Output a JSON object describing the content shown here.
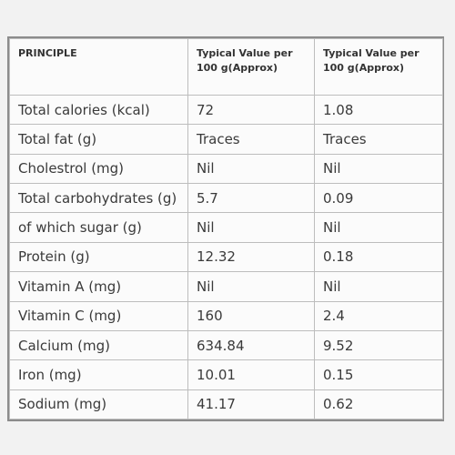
{
  "table": {
    "headers": [
      "PRINCIPLE",
      "Typical Value per 100 g(Approx)",
      "Typical Value per 100 g(Approx)"
    ],
    "rows": [
      [
        "Total calories (kcal)",
        "72",
        "1.08"
      ],
      [
        "Total fat (g)",
        "Traces",
        "Traces"
      ],
      [
        "Cholestrol (mg)",
        "Nil",
        "Nil"
      ],
      [
        "Total carbohydrates (g)",
        "5.7",
        "0.09"
      ],
      [
        "of which sugar (g)",
        "Nil",
        "Nil"
      ],
      [
        "Protein (g)",
        "12.32",
        "0.18"
      ],
      [
        "Vitamin A (mg)",
        "Nil",
        "Nil"
      ],
      [
        "Vitamin C (mg)",
        "160",
        "2.4"
      ],
      [
        "Calcium (mg)",
        "634.84",
        "9.52"
      ],
      [
        "Iron (mg)",
        "10.01",
        "0.15"
      ],
      [
        "Sodium (mg)",
        "41.17",
        "0.62"
      ]
    ]
  }
}
